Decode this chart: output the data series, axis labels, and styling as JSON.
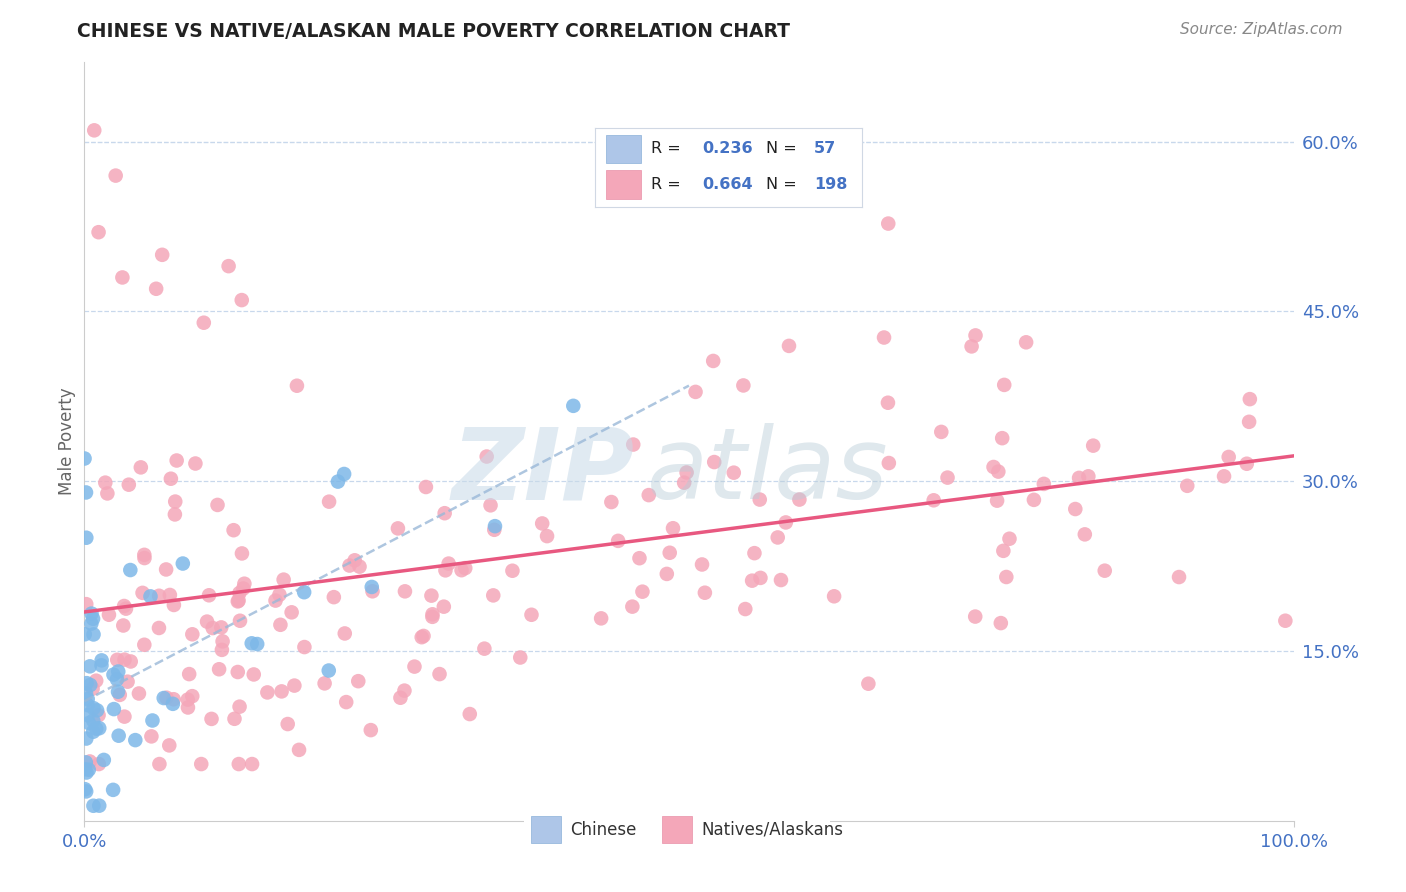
{
  "title": "CHINESE VS NATIVE/ALASKAN MALE POVERTY CORRELATION CHART",
  "source": "Source: ZipAtlas.com",
  "ylabel": "Male Poverty",
  "ytick_labels": [
    "15.0%",
    "30.0%",
    "45.0%",
    "60.0%"
  ],
  "ytick_values": [
    0.15,
    0.3,
    0.45,
    0.6
  ],
  "xlim": [
    0.0,
    1.0
  ],
  "ylim": [
    0.0,
    0.67
  ],
  "legend_R_color": "#4472c4",
  "legend_N_color": "#4472c4",
  "chinese_scatter_color": "#7eb8e8",
  "native_scatter_color": "#f4a7b9",
  "chinese_line_color": "#5585c5",
  "native_line_color": "#e85880",
  "background_color": "#ffffff",
  "grid_color": "#c8d8ec",
  "watermark_ZIP_color": "#c8dae8",
  "watermark_atlas_color": "#b8ccd8",
  "title_color": "#222222",
  "source_color": "#888888",
  "tick_color": "#4472c4",
  "ylabel_color": "#666666"
}
